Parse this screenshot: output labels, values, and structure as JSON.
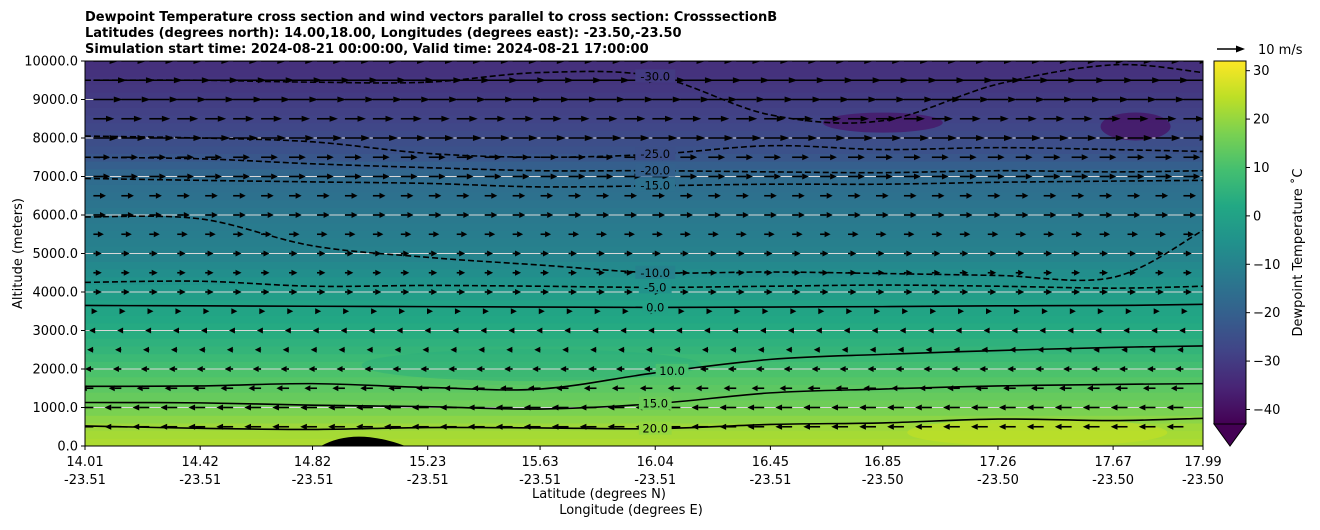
{
  "chart_data": {
    "type": "heatmap",
    "title_lines": [
      "Dewpoint Temperature cross section and wind vectors parallel to cross section: CrosssectionB",
      "Latitudes (degrees north): 14.00,18.00, Longitudes (degrees east): -23.50,-23.50",
      "Simulation start time: 2024-08-21 00:00:00, Valid time: 2024-08-21 17:00:00"
    ],
    "xlabel_lines": [
      "Latitude (degrees N)",
      "Longitude (degrees E)"
    ],
    "ylabel": "Altitude (meters)",
    "x_range": [
      14.01,
      17.99
    ],
    "ylim": [
      0,
      10000
    ],
    "x_ticks": [
      {
        "lat": 14.01,
        "lat_label": "14.01",
        "lon_label": "-23.51"
      },
      {
        "lat": 14.42,
        "lat_label": "14.42",
        "lon_label": "-23.51"
      },
      {
        "lat": 14.82,
        "lat_label": "14.82",
        "lon_label": "-23.51"
      },
      {
        "lat": 15.23,
        "lat_label": "15.23",
        "lon_label": "-23.51"
      },
      {
        "lat": 15.63,
        "lat_label": "15.63",
        "lon_label": "-23.51"
      },
      {
        "lat": 16.04,
        "lat_label": "16.04",
        "lon_label": "-23.51"
      },
      {
        "lat": 16.45,
        "lat_label": "16.45",
        "lon_label": "-23.51"
      },
      {
        "lat": 16.85,
        "lat_label": "16.85",
        "lon_label": "-23.50"
      },
      {
        "lat": 17.26,
        "lat_label": "17.26",
        "lon_label": "-23.50"
      },
      {
        "lat": 17.67,
        "lat_label": "17.67",
        "lon_label": "-23.50"
      },
      {
        "lat": 17.99,
        "lat_label": "17.99",
        "lon_label": "-23.50"
      }
    ],
    "y_ticks": [
      {
        "value": 0,
        "label": "0.0"
      },
      {
        "value": 1000,
        "label": "1000.0"
      },
      {
        "value": 2000,
        "label": "2000.0"
      },
      {
        "value": 3000,
        "label": "3000.0"
      },
      {
        "value": 4000,
        "label": "4000.0"
      },
      {
        "value": 5000,
        "label": "5000.0"
      },
      {
        "value": 6000,
        "label": "6000.0"
      },
      {
        "value": 7000,
        "label": "7000.0"
      },
      {
        "value": 8000,
        "label": "8000.0"
      },
      {
        "value": 9000,
        "label": "9000.0"
      },
      {
        "value": 10000,
        "label": "10000.0"
      }
    ],
    "grid": "horizontal",
    "colorbar": {
      "label": "Dewpoint Temperature ˚C",
      "range": [
        -43,
        32
      ],
      "extend": "min",
      "ticks": [
        {
          "value": -40,
          "label": "−40"
        },
        {
          "value": -30,
          "label": "−30"
        },
        {
          "value": -20,
          "label": "−20"
        },
        {
          "value": -10,
          "label": "−10"
        },
        {
          "value": 0,
          "label": "0"
        },
        {
          "value": 10,
          "label": "10"
        },
        {
          "value": 20,
          "label": "20"
        },
        {
          "value": 30,
          "label": "30"
        }
      ],
      "colors": [
        "#440154",
        "#482475",
        "#414487",
        "#355f8d",
        "#2a788e",
        "#21918c",
        "#22a884",
        "#44bf70",
        "#7ad151",
        "#bddf26",
        "#fde725"
      ]
    },
    "quiver_key": {
      "label": "10 m/s",
      "speed": 10
    },
    "dewpoint_profile": [
      {
        "alt": 0,
        "t": 23
      },
      {
        "alt": 500,
        "t": 21
      },
      {
        "alt": 1000,
        "t": 16
      },
      {
        "alt": 1500,
        "t": 13
      },
      {
        "alt": 2000,
        "t": 10
      },
      {
        "alt": 2500,
        "t": 6
      },
      {
        "alt": 3000,
        "t": 3
      },
      {
        "alt": 3700,
        "t": 0
      },
      {
        "alt": 4300,
        "t": -5
      },
      {
        "alt": 5000,
        "t": -10
      },
      {
        "alt": 6000,
        "t": -13
      },
      {
        "alt": 7000,
        "t": -17
      },
      {
        "alt": 7600,
        "t": -24
      },
      {
        "alt": 8500,
        "t": -28
      },
      {
        "alt": 9300,
        "t": -31
      },
      {
        "alt": 10000,
        "t": -33
      }
    ],
    "contours": [
      {
        "level": 20,
        "style": "solid",
        "label": "20.0",
        "label_lat": 16.04,
        "points": [
          [
            14.01,
            520
          ],
          [
            14.42,
            460
          ],
          [
            14.82,
            430
          ],
          [
            15.23,
            480
          ],
          [
            15.63,
            470
          ],
          [
            16.04,
            450
          ],
          [
            16.45,
            560
          ],
          [
            16.85,
            600
          ],
          [
            17.26,
            700
          ],
          [
            17.67,
            660
          ],
          [
            17.99,
            720
          ]
        ]
      },
      {
        "level": 15,
        "style": "solid",
        "label": "15.0",
        "label_lat": 16.04,
        "points": [
          [
            14.01,
            1130
          ],
          [
            14.42,
            1120
          ],
          [
            14.82,
            1060
          ],
          [
            15.23,
            1020
          ],
          [
            15.63,
            960
          ],
          [
            16.04,
            1100
          ],
          [
            16.45,
            1380
          ],
          [
            16.85,
            1480
          ],
          [
            17.26,
            1560
          ],
          [
            17.67,
            1600
          ],
          [
            17.99,
            1620
          ]
        ]
      },
      {
        "level": 10,
        "style": "solid",
        "label": "10.0",
        "label_lat": 16.1,
        "points": [
          [
            14.01,
            1550
          ],
          [
            14.42,
            1560
          ],
          [
            14.82,
            1620
          ],
          [
            15.23,
            1520
          ],
          [
            15.63,
            1480
          ],
          [
            16.04,
            1900
          ],
          [
            16.45,
            2250
          ],
          [
            16.85,
            2380
          ],
          [
            17.26,
            2480
          ],
          [
            17.67,
            2560
          ],
          [
            17.99,
            2600
          ]
        ]
      },
      {
        "level": 0,
        "style": "solid",
        "label": "0.0",
        "label_lat": 16.04,
        "points": [
          [
            14.01,
            3650
          ],
          [
            14.42,
            3640
          ],
          [
            14.82,
            3630
          ],
          [
            15.23,
            3620
          ],
          [
            15.63,
            3610
          ],
          [
            16.04,
            3600
          ],
          [
            16.45,
            3610
          ],
          [
            16.85,
            3620
          ],
          [
            17.26,
            3640
          ],
          [
            17.67,
            3650
          ],
          [
            17.99,
            3680
          ]
        ]
      },
      {
        "level": -5,
        "style": "dashed",
        "label": "-5.0",
        "label_lat": 16.04,
        "points": [
          [
            14.01,
            4250
          ],
          [
            14.42,
            4280
          ],
          [
            14.82,
            4150
          ],
          [
            15.23,
            4170
          ],
          [
            15.63,
            4150
          ],
          [
            16.04,
            4120
          ],
          [
            16.45,
            4150
          ],
          [
            16.85,
            4180
          ],
          [
            17.26,
            4150
          ],
          [
            17.67,
            4100
          ],
          [
            17.99,
            4150
          ]
        ]
      },
      {
        "level": -10,
        "style": "dashed",
        "label": "-10.0",
        "label_lat": 16.04,
        "points": [
          [
            14.01,
            5950
          ],
          [
            14.42,
            5900
          ],
          [
            14.82,
            5200
          ],
          [
            15.23,
            4900
          ],
          [
            15.63,
            4700
          ],
          [
            16.04,
            4500
          ],
          [
            16.45,
            4520
          ],
          [
            16.85,
            4480
          ],
          [
            17.26,
            4430
          ],
          [
            17.67,
            4380
          ],
          [
            17.99,
            5600
          ]
        ]
      },
      {
        "level": -15,
        "style": "dashed",
        "label": "-15.0",
        "label_lat": 16.04,
        "points": [
          [
            14.01,
            6950
          ],
          [
            14.42,
            6900
          ],
          [
            14.82,
            6860
          ],
          [
            15.23,
            6820
          ],
          [
            15.63,
            6730
          ],
          [
            16.04,
            6760
          ],
          [
            16.45,
            6800
          ],
          [
            16.85,
            6800
          ],
          [
            17.26,
            6850
          ],
          [
            17.67,
            6880
          ],
          [
            17.99,
            6900
          ]
        ]
      },
      {
        "level": -20,
        "style": "dashed",
        "label": "-20.0",
        "label_lat": 16.04,
        "points": [
          [
            14.01,
            7500
          ],
          [
            14.42,
            7460
          ],
          [
            14.82,
            7330
          ],
          [
            15.23,
            7230
          ],
          [
            15.63,
            7150
          ],
          [
            16.04,
            7150
          ],
          [
            16.45,
            7120
          ],
          [
            16.85,
            7100
          ],
          [
            17.26,
            7150
          ],
          [
            17.67,
            7120
          ],
          [
            17.99,
            7150
          ]
        ]
      },
      {
        "level": -25,
        "style": "dashed",
        "label": "-25.0",
        "label_lat": 16.04,
        "points": [
          [
            14.01,
            8050
          ],
          [
            14.42,
            8000
          ],
          [
            14.82,
            7900
          ],
          [
            15.23,
            7600
          ],
          [
            15.63,
            7500
          ],
          [
            16.04,
            7580
          ],
          [
            16.45,
            7800
          ],
          [
            16.85,
            7700
          ],
          [
            17.26,
            7750
          ],
          [
            17.67,
            7700
          ],
          [
            17.99,
            7650
          ]
        ]
      },
      {
        "level": -30,
        "style": "dashed",
        "label": "-30.0",
        "label_lat": 16.04,
        "points": [
          [
            14.01,
            9500
          ],
          [
            14.42,
            9500
          ],
          [
            14.82,
            9450
          ],
          [
            15.23,
            9450
          ],
          [
            15.63,
            9700
          ],
          [
            16.04,
            9600
          ],
          [
            16.45,
            8600
          ],
          [
            16.85,
            8450
          ],
          [
            17.26,
            9400
          ],
          [
            17.67,
            9900
          ],
          [
            17.99,
            9700
          ]
        ]
      }
    ],
    "terrain": {
      "lat_start": 14.85,
      "lat_end": 15.15,
      "peak_lat": 14.97,
      "peak_alt": 230
    },
    "wind_field": [
      {
        "alt": 500,
        "u": -4
      },
      {
        "alt": 1000,
        "u": -4
      },
      {
        "alt": 1500,
        "u": -3
      },
      {
        "alt": 2000,
        "u": -2
      },
      {
        "alt": 2500,
        "u": -1.5
      },
      {
        "alt": 3000,
        "u": -1
      },
      {
        "alt": 3500,
        "u": 1
      },
      {
        "alt": 4000,
        "u": 2
      },
      {
        "alt": 4500,
        "u": 2
      },
      {
        "alt": 5000,
        "u": 2
      },
      {
        "alt": 5500,
        "u": 2.5
      },
      {
        "alt": 6000,
        "u": 3
      },
      {
        "alt": 6500,
        "u": 3
      },
      {
        "alt": 7000,
        "u": 4
      },
      {
        "alt": 7500,
        "u": 4
      },
      {
        "alt": 8000,
        "u": 6
      },
      {
        "alt": 8500,
        "u": 5
      },
      {
        "alt": 9000,
        "u": 7
      },
      {
        "alt": 9500,
        "u": 8
      },
      {
        "alt": 10000,
        "u": 6
      }
    ]
  }
}
